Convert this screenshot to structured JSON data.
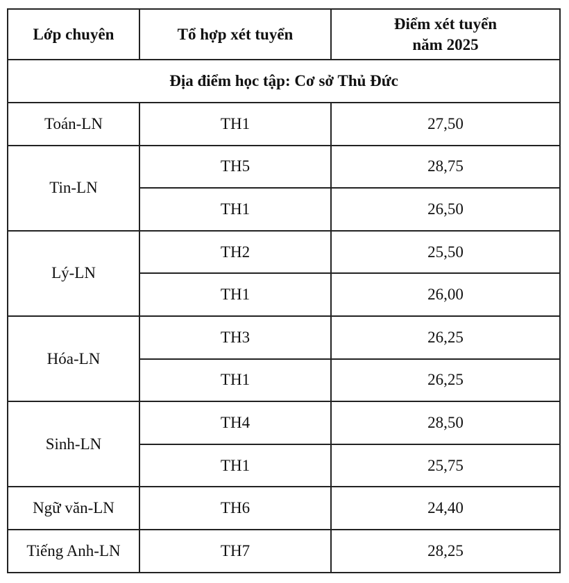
{
  "header": {
    "class": "Lớp chuyên",
    "combo": "Tổ hợp xét tuyển",
    "score_lines": [
      "Điểm xét tuyển",
      "năm 2025"
    ]
  },
  "section": "Địa điểm học tập: Cơ sở Thủ Đức",
  "groups": [
    {
      "class": "Toán-LN",
      "rows": [
        {
          "combo": "TH1",
          "score": "27,50"
        }
      ]
    },
    {
      "class": "Tin-LN",
      "rows": [
        {
          "combo": "TH5",
          "score": "28,75"
        },
        {
          "combo": "TH1",
          "score": "26,50"
        }
      ]
    },
    {
      "class": "Lý-LN",
      "rows": [
        {
          "combo": "TH2",
          "score": "25,50"
        },
        {
          "combo": "TH1",
          "score": "26,00"
        }
      ]
    },
    {
      "class": "Hóa-LN",
      "rows": [
        {
          "combo": "TH3",
          "score": "26,25"
        },
        {
          "combo": "TH1",
          "score": "26,25"
        }
      ]
    },
    {
      "class": "Sinh-LN",
      "rows": [
        {
          "combo": "TH4",
          "score": "28,50"
        },
        {
          "combo": "TH1",
          "score": "25,75"
        }
      ]
    },
    {
      "class": "Ngữ văn-LN",
      "rows": [
        {
          "combo": "TH6",
          "score": "24,40"
        }
      ]
    },
    {
      "class": "Tiếng Anh-LN",
      "rows": [
        {
          "combo": "TH7",
          "score": "28,25"
        }
      ]
    }
  ]
}
